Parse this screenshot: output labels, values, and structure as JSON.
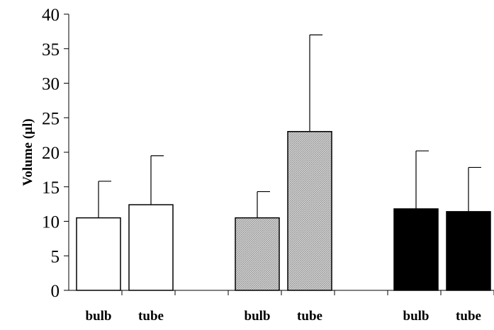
{
  "chart_data": {
    "type": "bar",
    "title": "",
    "xlabel": "",
    "ylabel": "Volume (µl)",
    "ylim": [
      0,
      40
    ],
    "yticks": [
      0,
      5,
      10,
      15,
      20,
      25,
      30,
      35,
      40
    ],
    "grid": false,
    "categories": [
      "bulb",
      "tube",
      "bulb",
      "tube",
      "bulb",
      "tube"
    ],
    "groups": [
      {
        "bars": [
          {
            "label": "bulb",
            "value": 10.5,
            "error": 5.3
          },
          {
            "label": "tube",
            "value": 12.4,
            "error": 7.1
          }
        ],
        "fill": "#ffffff"
      },
      {
        "bars": [
          {
            "label": "bulb",
            "value": 10.5,
            "error": 3.8
          },
          {
            "label": "tube",
            "value": 23.0,
            "error": 14.0
          }
        ],
        "fill": "#c8c8c8"
      },
      {
        "bars": [
          {
            "label": "bulb",
            "value": 11.8,
            "error": 8.4
          },
          {
            "label": "tube",
            "value": 11.4,
            "error": 6.4
          }
        ],
        "fill": "#000000"
      }
    ]
  }
}
